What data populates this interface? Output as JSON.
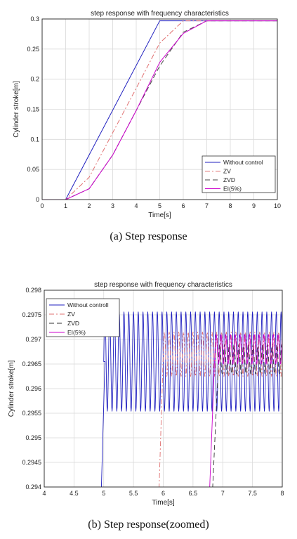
{
  "chart_data": [
    {
      "type": "line",
      "title": "step response with frequency characteristics",
      "xlabel": "Time[s]",
      "ylabel": "Cylinder stroke[m]",
      "xlim": [
        0,
        10
      ],
      "ylim": [
        0,
        0.3
      ],
      "xticks": [
        "0",
        "1",
        "2",
        "3",
        "4",
        "5",
        "6",
        "7",
        "8",
        "9",
        "10"
      ],
      "yticks": [
        "0",
        "0.05",
        "0.1",
        "0.15",
        "0.2",
        "0.25",
        "0.3"
      ],
      "grid": true,
      "legend_position": "bottom-right",
      "series": [
        {
          "name": "Without control",
          "color": "#1f1fbf",
          "dash": "solid",
          "x": [
            0,
            1,
            5,
            10
          ],
          "y": [
            0,
            0,
            0.297,
            0.297
          ]
        },
        {
          "name": "ZV",
          "color": "#e07070",
          "dash": "dashdot",
          "x": [
            0,
            1,
            2,
            3,
            4,
            5,
            6,
            7,
            10
          ],
          "y": [
            0,
            0,
            0.037,
            0.111,
            0.185,
            0.26,
            0.297,
            0.297,
            0.297
          ]
        },
        {
          "name": "ZVD",
          "color": "#444444",
          "dash": "dashed",
          "x": [
            0,
            1,
            2,
            3,
            4,
            5,
            6,
            7,
            10
          ],
          "y": [
            0,
            0,
            0.018,
            0.074,
            0.148,
            0.222,
            0.278,
            0.297,
            0.297
          ]
        },
        {
          "name": "EI(5%)",
          "color": "#cc00cc",
          "dash": "solid",
          "x": [
            0,
            1,
            2,
            3,
            4,
            5,
            6,
            7,
            10
          ],
          "y": [
            0,
            0,
            0.018,
            0.074,
            0.148,
            0.228,
            0.276,
            0.297,
            0.297
          ]
        }
      ]
    },
    {
      "type": "line",
      "title": "step response with frequency characteristics",
      "xlabel": "Time[s]",
      "ylabel": "Cylinder stroke[m]",
      "xlim": [
        4,
        8
      ],
      "ylim": [
        0.294,
        0.298
      ],
      "xticks": [
        "4",
        "4.5",
        "5",
        "5.5",
        "6",
        "6.5",
        "7",
        "7.5",
        "8"
      ],
      "yticks": [
        "0.294",
        "0.2945",
        "0.295",
        "0.2955",
        "0.296",
        "0.2965",
        "0.297",
        "0.2975",
        "0.298"
      ],
      "grid": true,
      "legend_position": "top-left",
      "series": [
        {
          "name": "Without controll",
          "color": "#1f1fbf",
          "dash": "solid",
          "rise_x": [
            4.96,
            5.02
          ],
          "osc_start": 5.0,
          "osc_center": 0.29655,
          "osc_amp": 0.00101,
          "osc_period": 0.08
        },
        {
          "name": "ZV",
          "color": "#e07070",
          "dash": "dashdot",
          "rise_x": [
            5.93,
            6.0
          ],
          "osc_start": 6.0,
          "osc_center": 0.2967,
          "osc_amp": 0.00045,
          "osc_period": 0.08
        },
        {
          "name": "ZVD",
          "color": "#333333",
          "dash": "dashed",
          "rise_x": [
            6.83,
            6.93
          ],
          "osc_start": 6.93,
          "osc_center": 0.2966,
          "osc_amp": 0.0003,
          "osc_period": 0.08
        },
        {
          "name": "EI(5%)",
          "color": "#cc00cc",
          "dash": "solid",
          "rise_x": [
            6.78,
            6.87
          ],
          "osc_start": 6.87,
          "osc_center": 0.2968,
          "osc_amp": 0.0003,
          "osc_period": 0.08
        }
      ]
    }
  ],
  "captions": {
    "a": "(a)  Step  response",
    "b": "(b)  Step  response(zoomed)"
  }
}
